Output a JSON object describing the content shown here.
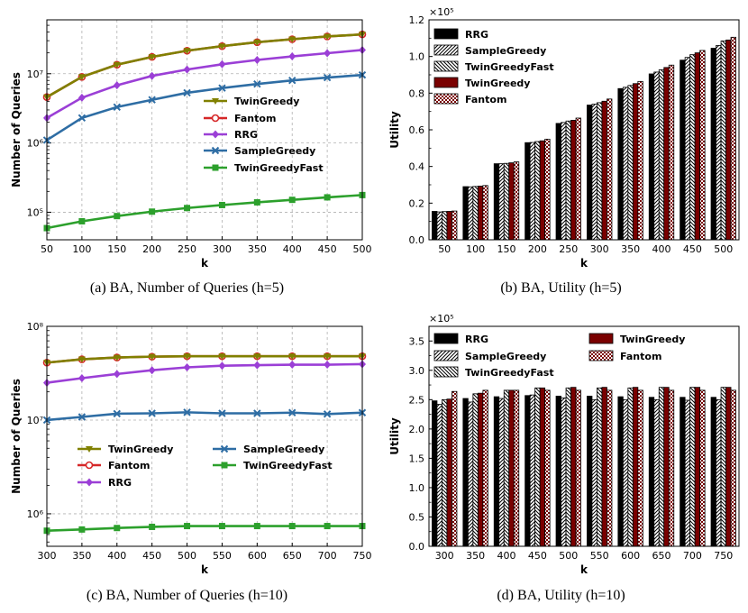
{
  "colors": {
    "TwinGreedy": "#808000",
    "Fantom": "#d62728",
    "RRG": "#9b3fd6",
    "SampleGreedy": "#2e6da4",
    "TwinGreedyFast": "#2ca02c",
    "grid": "#b0b0b0",
    "bar_dark": "#7a0000"
  },
  "chart_data": [
    {
      "type": "line",
      "id": "a",
      "caption": "(a) BA, Number of Queries (h=5)",
      "xlabel": "k",
      "ylabel": "Number of Queries",
      "yscale": "log",
      "ylim": [
        40000,
        60000000
      ],
      "ytick_labels": [
        "10⁵",
        "10⁶",
        "10⁷"
      ],
      "ytick_values": [
        100000,
        1000000,
        10000000
      ],
      "x": [
        50,
        100,
        150,
        200,
        250,
        300,
        350,
        400,
        450,
        500
      ],
      "xlim": [
        50,
        500
      ],
      "legend_location": "center-right",
      "series": [
        {
          "name": "TwinGreedy",
          "marker": "triangle-down",
          "values": [
            4600000,
            9000000,
            13500000,
            17500000,
            21500000,
            25000000,
            28500000,
            31500000,
            34500000,
            37000000
          ]
        },
        {
          "name": "Fantom",
          "marker": "circle",
          "values": [
            4600000,
            9000000,
            13500000,
            17500000,
            21500000,
            25000000,
            28500000,
            31500000,
            34500000,
            37000000
          ]
        },
        {
          "name": "RRG",
          "marker": "diamond",
          "values": [
            2300000,
            4500000,
            6800000,
            9300000,
            11500000,
            13700000,
            15800000,
            17800000,
            19800000,
            22000000
          ]
        },
        {
          "name": "SampleGreedy",
          "marker": "x",
          "values": [
            1100000,
            2300000,
            3300000,
            4200000,
            5300000,
            6200000,
            7100000,
            8000000,
            8800000,
            9600000
          ]
        },
        {
          "name": "TwinGreedyFast",
          "marker": "square",
          "values": [
            59000,
            74000,
            88000,
            102000,
            115000,
            127000,
            139000,
            151000,
            164000,
            177000
          ]
        }
      ]
    },
    {
      "type": "bar",
      "id": "b",
      "caption": "(b) BA, Utility (h=5)",
      "xlabel": "k",
      "ylabel": "Utility",
      "multiplier": "×10⁵",
      "ylim": [
        0,
        1.2
      ],
      "ytick_labels": [
        "0.0",
        "0.2",
        "0.4",
        "0.6",
        "0.8",
        "1.0",
        "1.2"
      ],
      "categories": [
        "50",
        "100",
        "150",
        "200",
        "250",
        "300",
        "350",
        "400",
        "450",
        "500"
      ],
      "legend_location": "upper-left",
      "series": [
        {
          "name": "RRG",
          "pattern": "solid-black",
          "values": [
            0.155,
            0.29,
            0.415,
            0.53,
            0.635,
            0.735,
            0.825,
            0.905,
            0.98,
            1.045
          ]
        },
        {
          "name": "SampleGreedy",
          "pattern": "hatch-forward",
          "values": [
            0.152,
            0.289,
            0.415,
            0.531,
            0.64,
            0.74,
            0.832,
            0.915,
            0.995,
            1.06
          ]
        },
        {
          "name": "TwinGreedyFast",
          "pattern": "hatch-back",
          "values": [
            0.154,
            0.291,
            0.417,
            0.536,
            0.648,
            0.748,
            0.842,
            0.928,
            1.01,
            1.085
          ]
        },
        {
          "name": "TwinGreedy",
          "pattern": "solid-dark",
          "values": [
            0.155,
            0.293,
            0.42,
            0.54,
            0.652,
            0.756,
            0.852,
            0.94,
            1.02,
            1.09
          ]
        },
        {
          "name": "Fantom",
          "pattern": "checker",
          "values": [
            0.157,
            0.296,
            0.425,
            0.549,
            0.664,
            0.768,
            0.864,
            0.953,
            1.033,
            1.105
          ]
        }
      ]
    },
    {
      "type": "line",
      "id": "c",
      "caption": "(c) BA, Number of Queries (h=10)",
      "xlabel": "k",
      "ylabel": "Number of Queries",
      "yscale": "log",
      "ylim": [
        450000,
        100000000
      ],
      "ytick_labels": [
        "10⁶",
        "10⁷",
        "10⁸"
      ],
      "ytick_values": [
        1000000,
        10000000,
        100000000
      ],
      "x": [
        300,
        350,
        400,
        450,
        500,
        550,
        600,
        650,
        700,
        750
      ],
      "xlim": [
        300,
        750
      ],
      "legend_location": "lower-left",
      "series": [
        {
          "name": "TwinGreedy",
          "marker": "triangle-down",
          "values": [
            41000000,
            44500000,
            46500000,
            47500000,
            48000000,
            48000000,
            48000000,
            48000000,
            48000000,
            48000000
          ]
        },
        {
          "name": "Fantom",
          "marker": "circle",
          "values": [
            41000000,
            44500000,
            46500000,
            47500000,
            48000000,
            48000000,
            48000000,
            48000000,
            48000000,
            48000000
          ]
        },
        {
          "name": "RRG",
          "marker": "diamond",
          "values": [
            25000000,
            28000000,
            31000000,
            34000000,
            36500000,
            38000000,
            38500000,
            39000000,
            39000000,
            39500000
          ]
        },
        {
          "name": "SampleGreedy",
          "marker": "x",
          "values": [
            10000000,
            10800000,
            11700000,
            11800000,
            12100000,
            11800000,
            11800000,
            12000000,
            11600000,
            12000000
          ]
        },
        {
          "name": "TwinGreedyFast",
          "marker": "square",
          "values": [
            660000,
            680000,
            705000,
            725000,
            740000,
            740000,
            740000,
            740000,
            740000,
            740000
          ]
        }
      ]
    },
    {
      "type": "bar",
      "id": "d",
      "caption": "(d) BA, Utility (h=10)",
      "xlabel": "k",
      "ylabel": "Utility",
      "multiplier": "×10⁵",
      "ylim": [
        0,
        3.75
      ],
      "ytick_labels": [
        "0.0",
        "0.5",
        "1.0",
        "1.5",
        "2.0",
        "2.5",
        "3.0",
        "3.5"
      ],
      "categories": [
        "300",
        "350",
        "400",
        "450",
        "500",
        "550",
        "600",
        "650",
        "700",
        "750"
      ],
      "legend_location": "upper",
      "series": [
        {
          "name": "RRG",
          "pattern": "solid-black",
          "values": [
            2.48,
            2.52,
            2.55,
            2.57,
            2.56,
            2.56,
            2.55,
            2.54,
            2.54,
            2.54
          ]
        },
        {
          "name": "SampleGreedy",
          "pattern": "hatch-forward",
          "values": [
            2.42,
            2.46,
            2.52,
            2.58,
            2.53,
            2.5,
            2.5,
            2.5,
            2.49,
            2.5
          ]
        },
        {
          "name": "TwinGreedyFast",
          "pattern": "hatch-back",
          "values": [
            2.5,
            2.6,
            2.66,
            2.7,
            2.7,
            2.7,
            2.7,
            2.71,
            2.71,
            2.71
          ]
        },
        {
          "name": "TwinGreedy",
          "pattern": "solid-dark",
          "values": [
            2.51,
            2.61,
            2.66,
            2.7,
            2.71,
            2.71,
            2.71,
            2.71,
            2.71,
            2.71
          ]
        },
        {
          "name": "Fantom",
          "pattern": "checker",
          "values": [
            2.64,
            2.66,
            2.66,
            2.66,
            2.66,
            2.66,
            2.66,
            2.66,
            2.66,
            2.66
          ]
        }
      ]
    }
  ]
}
